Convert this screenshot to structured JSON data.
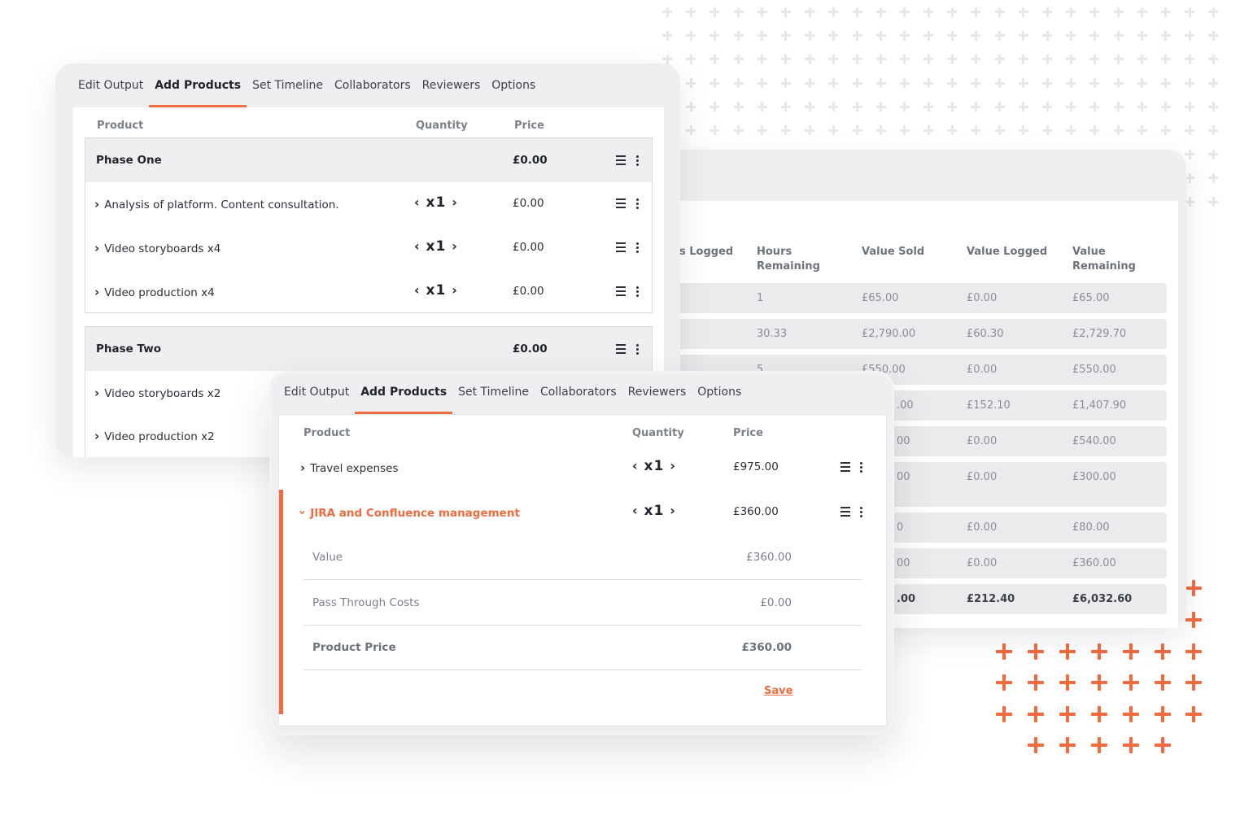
{
  "tabs": [
    "Edit Output",
    "Add Products",
    "Set Timeline",
    "Collaborators",
    "Reviewers",
    "Options"
  ],
  "active_tab": "Add Products",
  "accent_color": "#f26b3f",
  "summary_table": {
    "columns": [
      "s Logged",
      "Hours Remaining",
      "Value Sold",
      "Value Logged",
      "Value Remaining"
    ],
    "rows": [
      {
        "hours_remaining": "1",
        "value_sold": "£65.00",
        "value_logged": "£0.00",
        "value_remaining": "£65.00"
      },
      {
        "hours_remaining": "30.33",
        "value_sold": "£2,790.00",
        "value_logged": "£60.30",
        "value_remaining": "£2,729.70"
      },
      {
        "hours_remaining": "5",
        "value_sold": "£550.00",
        "value_logged": "£0.00",
        "value_remaining": "£550.00"
      },
      {
        "value_sold": ".00",
        "value_logged": "£152.10",
        "value_remaining": "£1,407.90"
      },
      {
        "value_sold": "00",
        "value_logged": "£0.00",
        "value_remaining": "£540.00"
      },
      {
        "value_sold": "00",
        "value_logged": "£0.00",
        "value_remaining": "£300.00"
      },
      {
        "value_sold": "0",
        "value_logged": "£0.00",
        "value_remaining": "£80.00"
      },
      {
        "value_sold": "00",
        "value_logged": "£0.00",
        "value_remaining": "£360.00"
      }
    ],
    "total": {
      "value_sold": ".00",
      "value_logged": "£212.40",
      "value_remaining": "£6,032.60"
    }
  },
  "phases_card": {
    "headers": {
      "product": "Product",
      "quantity": "Quantity",
      "price": "Price"
    },
    "phase_one": {
      "title": "Phase One",
      "price": "£0.00",
      "items": [
        {
          "name": "Analysis of platform. Content consultation.",
          "qty": "x1",
          "price": "£0.00"
        },
        {
          "name": "Video storyboards x4",
          "qty": "x1",
          "price": "£0.00"
        },
        {
          "name": "Video production x4",
          "qty": "x1",
          "price": "£0.00"
        }
      ]
    },
    "phase_two": {
      "title": "Phase Two",
      "price": "£0.00",
      "items": [
        {
          "name": "Video storyboards x2"
        },
        {
          "name": "Video production x2"
        }
      ]
    }
  },
  "products_card": {
    "headers": {
      "product": "Product",
      "quantity": "Quantity",
      "price": "Price"
    },
    "items": [
      {
        "name": "Travel expenses",
        "qty": "x1",
        "price": "£975.00"
      },
      {
        "name": "JIRA and Confluence management",
        "qty": "x1",
        "price": "£360.00"
      }
    ],
    "details": {
      "value_label": "Value",
      "value": "£360.00",
      "pass_label": "Pass Through Costs",
      "pass": "£0.00",
      "product_price_label": "Product Price",
      "product_price": "£360.00"
    },
    "save_label": "Save"
  },
  "icons": {
    "expand": "chevron-right-icon",
    "expanded": "chevron-down-icon",
    "menu": "list-menu-icon",
    "more": "more-vertical-icon"
  }
}
